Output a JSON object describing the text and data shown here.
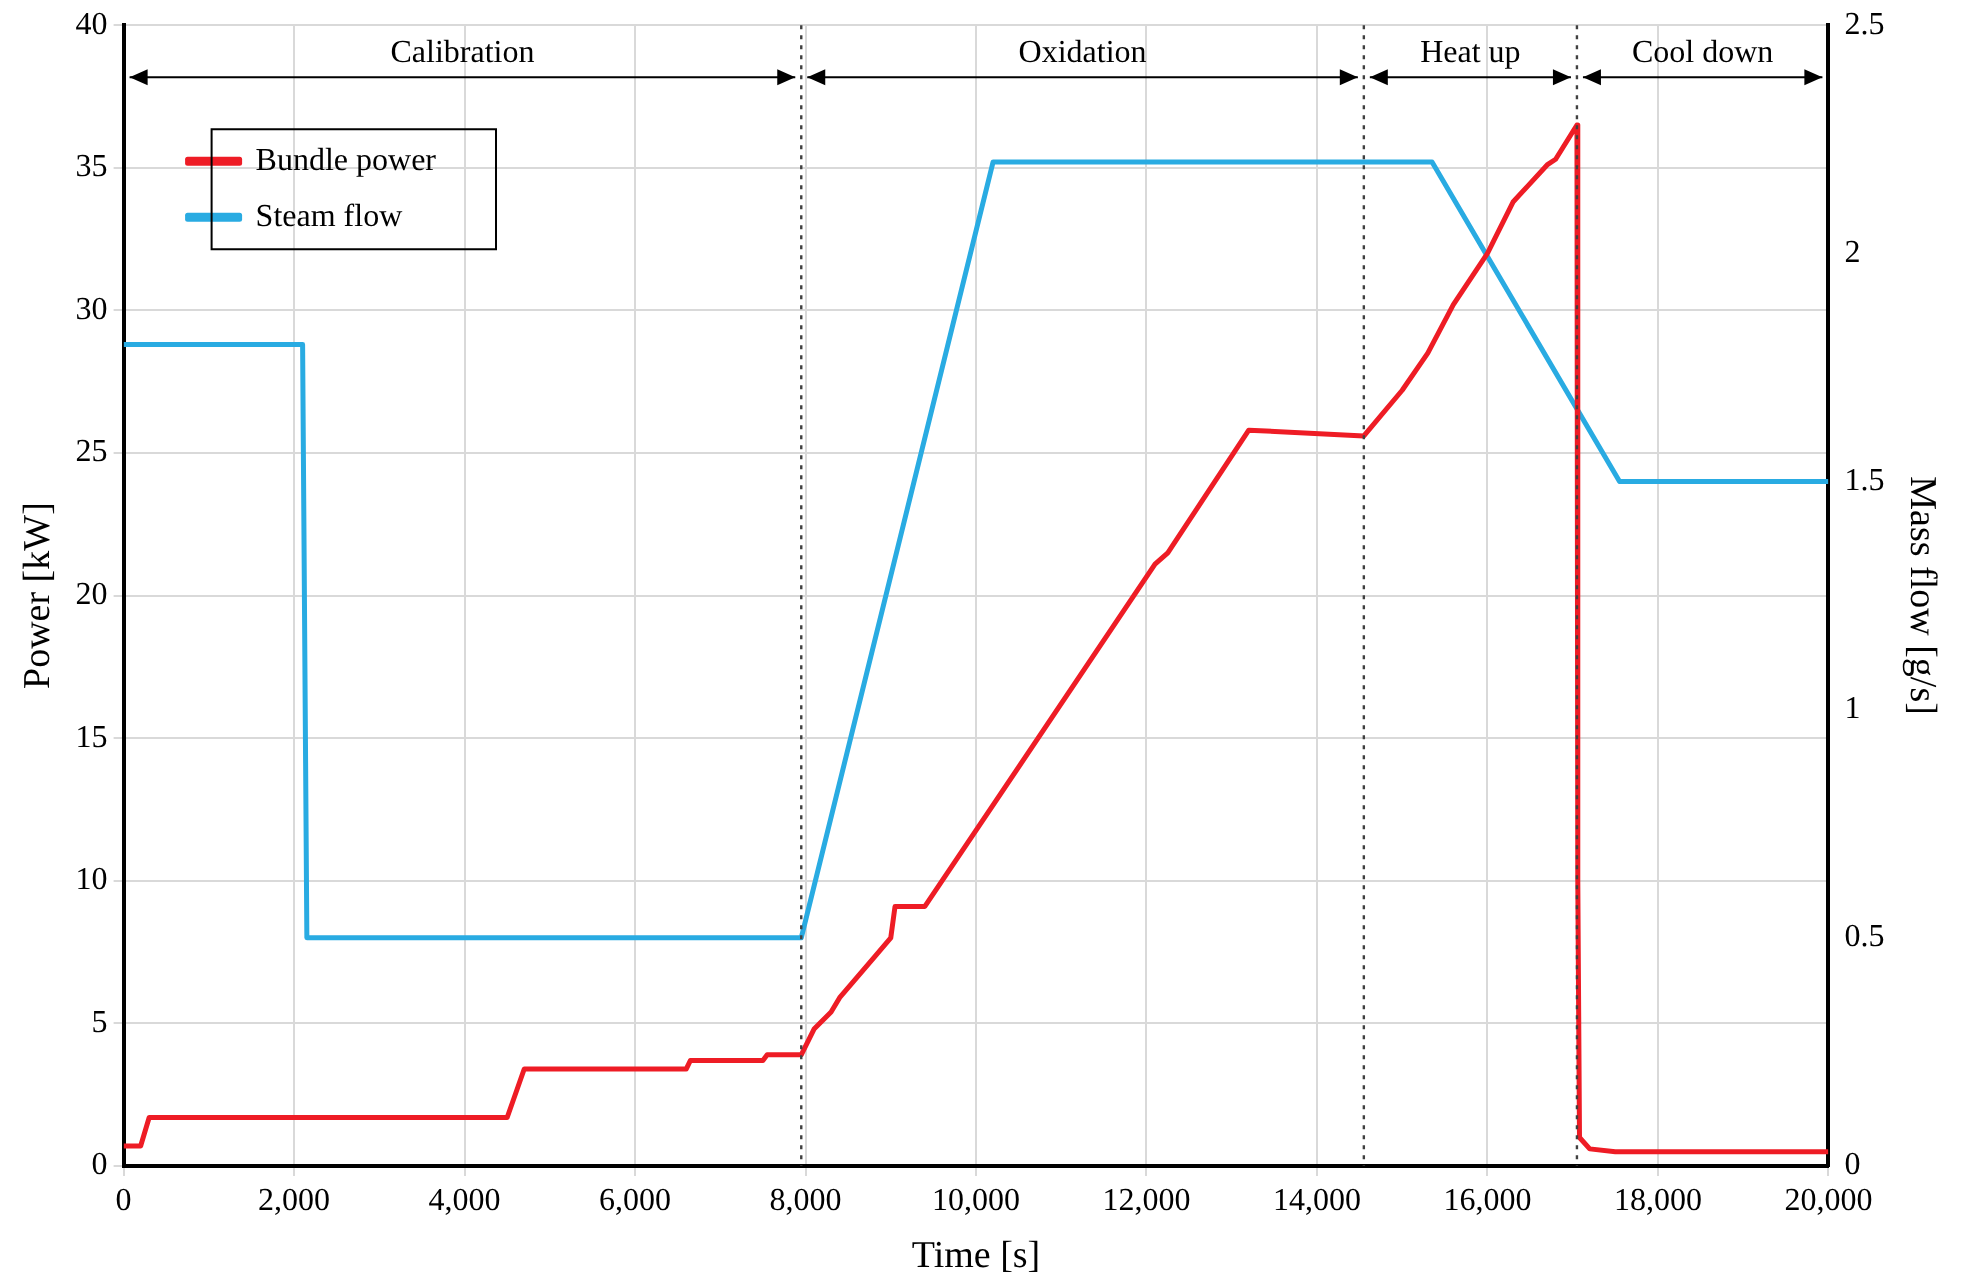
{
  "chart_data": {
    "type": "line",
    "xlabel": "Time [s]",
    "ylabel": "Power [kW]",
    "y2label": "Mass flow [g/s]",
    "xlim": [
      0,
      20000
    ],
    "xticks": [
      0,
      {
        "value": 2000,
        "label": "2,000"
      },
      {
        "value": 4000,
        "label": "4,000"
      },
      {
        "value": 6000,
        "label": "6,000"
      },
      {
        "value": 8000,
        "label": "8,000"
      },
      {
        "value": 10000,
        "label": "10,000"
      },
      {
        "value": 12000,
        "label": "12,000"
      },
      {
        "value": 14000,
        "label": "14,000"
      },
      {
        "value": 16000,
        "label": "16,000"
      },
      {
        "value": 18000,
        "label": "18,000"
      },
      {
        "value": 20000,
        "label": "20,000"
      }
    ],
    "ylim": [
      0,
      40
    ],
    "yticks": [
      0,
      5,
      10,
      15,
      20,
      25,
      30,
      35,
      40
    ],
    "y2lim": [
      0,
      2.5
    ],
    "y2ticks": [
      0,
      0.5,
      1,
      1.5,
      2,
      2.5
    ],
    "grid": true,
    "legend": "top left",
    "marker": "none",
    "line_style": "solid",
    "series": [
      {
        "name": "Bundle power",
        "color": "#ee1c25",
        "x": [
          0,
          200,
          300,
          4500,
          4700,
          6600,
          6650,
          7500,
          7550,
          7950,
          8100,
          8300,
          8400,
          8800,
          9000,
          9050,
          9400,
          12100,
          12250,
          13200,
          14550,
          15000,
          15300,
          15600,
          16000,
          16300,
          16700,
          16800,
          17050,
          17060,
          17080,
          17200,
          17500,
          20000
        ],
        "values": [
          0.7,
          0.7,
          1.7,
          1.7,
          3.4,
          3.4,
          3.7,
          3.7,
          3.9,
          3.9,
          4.8,
          5.4,
          5.9,
          7.3,
          8.0,
          9.1,
          9.1,
          21.1,
          21.5,
          25.8,
          25.6,
          27.2,
          28.5,
          30.2,
          32.0,
          33.8,
          35.1,
          35.3,
          36.5,
          10,
          1,
          0.6,
          0.5,
          0.5
        ]
      },
      {
        "name": "Steam flow",
        "color": "#29abe2",
        "axis": "y2",
        "x": [
          0,
          2100,
          2150,
          7950,
          10200,
          15350,
          17550,
          20000
        ],
        "values": [
          1.8,
          1.8,
          0.5,
          0.5,
          2.2,
          2.2,
          1.5,
          1.5
        ]
      }
    ],
    "ref_lines": [
      {
        "axis": "x",
        "value": 7950,
        "color": "#404040",
        "line_style": "dotted"
      },
      {
        "axis": "x",
        "value": 14550,
        "color": "#404040",
        "line_style": "dotted"
      },
      {
        "axis": "x",
        "value": 17050,
        "color": "#404040",
        "line_style": "dotted"
      }
    ],
    "annotations": [
      "Calibration",
      "Oxidation",
      "Heat up",
      "Cool down"
    ]
  }
}
